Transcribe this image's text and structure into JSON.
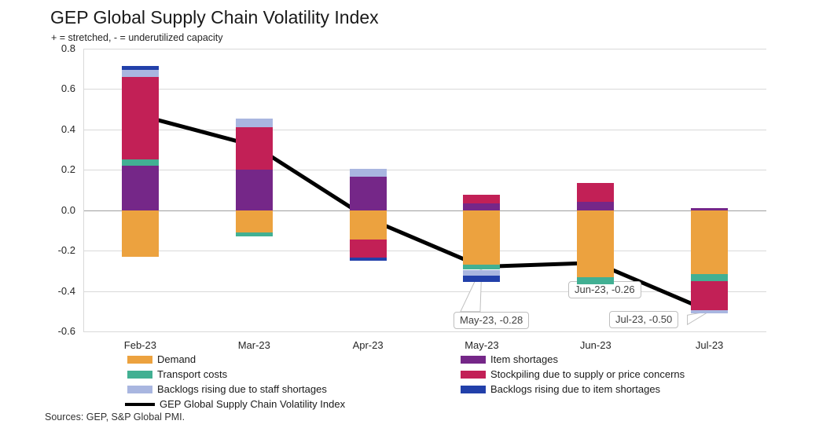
{
  "title": "GEP Global Supply Chain Volatility Index",
  "subtitle": "+ = stretched, - = underutilized capacity",
  "footer": "Sources: GEP, S&P Global PMI.",
  "chart_data": {
    "type": "bar",
    "subtype": "stacked-bar-with-line",
    "title": "GEP Global Supply Chain Volatility Index",
    "subtitle": "+ = stretched, - = underutilized capacity",
    "categories": [
      "Feb-23",
      "Mar-23",
      "Apr-23",
      "May-23",
      "Jun-23",
      "Jul-23"
    ],
    "series": [
      {
        "name": "Demand",
        "color": "#ECA23F",
        "values": [
          -0.23,
          -0.11,
          -0.145,
          -0.27,
          -0.33,
          -0.315
        ]
      },
      {
        "name": "Item shortages",
        "color": "#752788",
        "values": [
          0.22,
          0.2,
          0.165,
          0.035,
          0.04,
          0.01
        ]
      },
      {
        "name": "Transport costs",
        "color": "#42B093",
        "values": [
          0.03,
          -0.02,
          0,
          -0.025,
          -0.035,
          -0.035
        ]
      },
      {
        "name": "Stockpiling due to supply or price concerns",
        "color": "#C22056",
        "values": [
          0.41,
          0.21,
          -0.09,
          0.04,
          0.095,
          -0.145
        ]
      },
      {
        "name": "Backlogs rising due to staff shortages",
        "color": "#A9B6E0",
        "values": [
          0.035,
          0.045,
          0.04,
          -0.03,
          0,
          -0.015
        ]
      },
      {
        "name": "Backlogs rising due to item shortages",
        "color": "#2240AA",
        "values": [
          0.02,
          0,
          -0.015,
          -0.03,
          0,
          0
        ]
      }
    ],
    "line_series": {
      "name": "GEP Global Supply Chain Volatility Index",
      "color": "#000000",
      "values": [
        0.47,
        0.32,
        -0.04,
        -0.28,
        -0.26,
        -0.5
      ]
    },
    "ylim": [
      -0.6,
      0.8
    ],
    "yticks": [
      0.8,
      0.6,
      0.4,
      0.2,
      0.0,
      -0.2,
      -0.4,
      -0.6
    ],
    "grid": "horizontal",
    "legend_position": "bottom",
    "annotations": [
      {
        "label": "May-23, -0.28",
        "category_index": 3,
        "value": -0.28
      },
      {
        "label": "Jun-23, -0.26",
        "category_index": 4,
        "value": -0.26
      },
      {
        "label": "Jul-23, -0.50",
        "category_index": 5,
        "value": -0.5
      }
    ]
  },
  "legend": {
    "left": [
      {
        "label": "Demand",
        "type": "box",
        "color": "#ECA23F"
      },
      {
        "label": "Transport costs",
        "type": "box",
        "color": "#42B093"
      },
      {
        "label": "Backlogs rising due to staff shortages",
        "type": "box",
        "color": "#A9B6E0"
      },
      {
        "label": "GEP Global Supply Chain Volatility Index",
        "type": "line",
        "color": "#000000"
      }
    ],
    "right": [
      {
        "label": "Item shortages",
        "type": "box",
        "color": "#752788"
      },
      {
        "label": "Stockpiling due to supply or price concerns",
        "type": "box",
        "color": "#C22056"
      },
      {
        "label": "Backlogs rising due to item shortages",
        "type": "box",
        "color": "#2240AA"
      }
    ]
  }
}
